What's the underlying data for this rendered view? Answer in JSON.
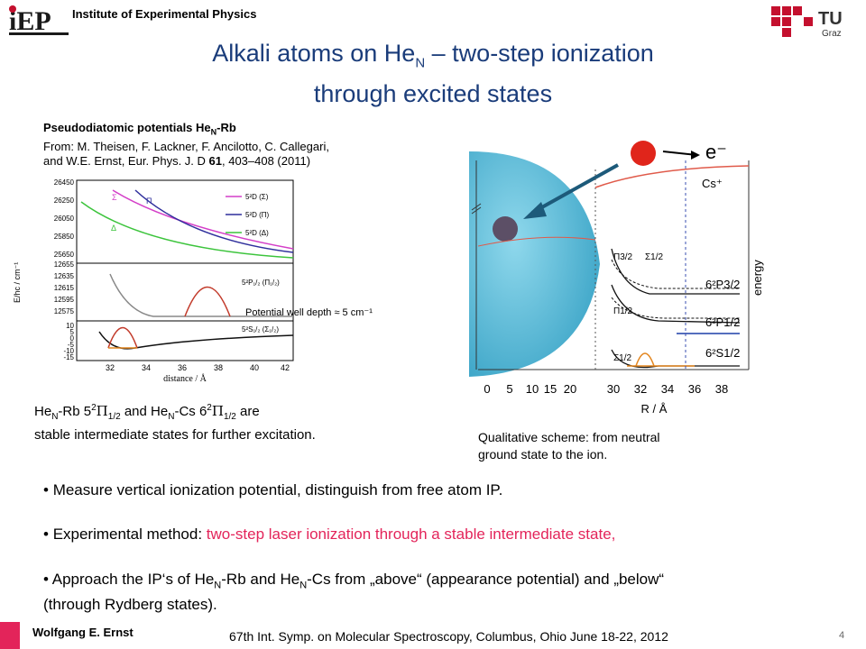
{
  "header": {
    "logo_left": "iEP",
    "institute": "Institute of Experimental Physics",
    "logo_right_text": "TU",
    "logo_right_sub": "Graz"
  },
  "title": {
    "line1_pre": "Alkali atoms on He",
    "line1_sub": "N",
    "line1_post": " – two-step ionization",
    "line2": "through excited states"
  },
  "reference": {
    "heading_pre": "Pseudodiatomic potentials He",
    "heading_sub": "N",
    "heading_post": "-Rb",
    "line1": "From: M. Theisen, F. Lackner, F. Ancilotto, C. Callegari,",
    "line2_pre": "and W.E. Ernst, Eur. Phys. J. D ",
    "line2_vol": "61",
    "line2_post": ", 403–408 (2011)"
  },
  "left_plot": {
    "ylabel": "E/hc / cm⁻¹",
    "xlabel": "distance / Å",
    "top_ticks": [
      "26450",
      "26250",
      "26050",
      "25850",
      "25650"
    ],
    "mid_ticks": [
      "12655",
      "12635",
      "12615",
      "12595",
      "12575"
    ],
    "bot_ticks": [
      "10",
      "5",
      "0",
      "-5",
      "-10",
      "-15",
      "-20"
    ],
    "x_ticks": [
      "32",
      "34",
      "36",
      "38",
      "40",
      "42"
    ],
    "legend": [
      "5²D (Σ)",
      "5²D (Π)",
      "5²D (Δ)"
    ],
    "legend_colors": [
      "#d43fc8",
      "#2f2f9c",
      "#3cc43c"
    ],
    "curve_labels": [
      "Σ",
      "Π",
      "Δ"
    ],
    "state_p": "5²P₁/₂ (Π₁/₂)",
    "state_s": "5²S₁/₂ (Σ₁/₂)",
    "well_note": "Potential well depth ≈ 5 cm⁻¹"
  },
  "left_caption": {
    "l1_a": "He",
    "l1_b": "N",
    "l1_c": "-Rb 5",
    "l1_d": "2",
    "l1_e": "Π",
    "l1_f": "1/2",
    "l1_g": " and He",
    "l1_h": "N",
    "l1_i": "-Cs 6",
    "l1_j": "2",
    "l1_k": "Π",
    "l1_l": "1/2",
    "l1_m": " are",
    "line2": "stable intermediate states for further excitation."
  },
  "right_plot": {
    "electron": "e⁻",
    "ion": "Cs⁺",
    "energy": "energy",
    "x_ticks": [
      "0",
      "5",
      "10",
      "15",
      "20",
      "30",
      "32",
      "34",
      "36",
      "38"
    ],
    "xlabel": "R / Å",
    "labels": [
      "Π3/2",
      "Σ1/2",
      "6²P3/2",
      "Π1/2",
      "6²P1/2",
      "Σ1/2",
      "6²S1/2"
    ]
  },
  "right_caption": {
    "line1": "Qualitative scheme: from neutral",
    "line2": "ground state to the ion."
  },
  "bullets": [
    {
      "text": "Measure vertical ionization potential, distinguish from free atom IP."
    },
    {
      "pre": "Experimental method: ",
      "highlight": "two-step laser ionization through a stable intermediate state,"
    },
    {
      "a": "Approach the IP‘s of He",
      "b": "N",
      "c": "-Rb and He",
      "d": "N",
      "e": "-Cs from „above“ (appearance potential) and „below“",
      "f": "(through Rydberg states)."
    }
  ],
  "footer": {
    "author": "Wolfgang E. Ernst",
    "conference": "67th Int. Symp. on Molecular Spectroscopy, Columbus, Ohio June 18-22, 2012",
    "page": "4"
  },
  "colors": {
    "title": "#1a3c7a",
    "highlight": "#e3245a",
    "tu_red": "#c4102e",
    "sphere": "#5bbedb"
  }
}
